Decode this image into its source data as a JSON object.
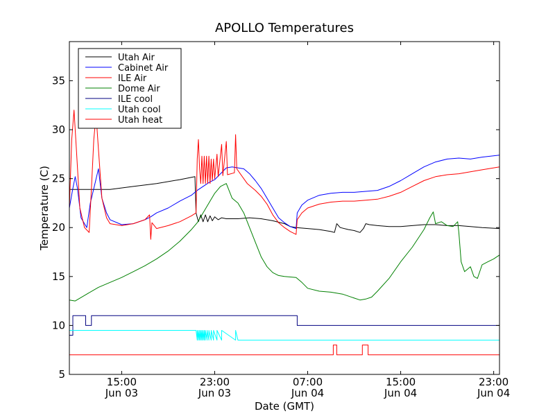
{
  "chart_data": {
    "type": "line",
    "title": "APOLLO Temperatures",
    "xlabel": "Date (GMT)",
    "ylabel": "Temperature (C)",
    "x_unit": "hours since Jun 03 00:00 GMT",
    "xlim": [
      10.5,
      47.5
    ],
    "ylim": [
      5,
      39
    ],
    "yticks": [
      5,
      10,
      15,
      20,
      25,
      30,
      35
    ],
    "ytick_labels": [
      "5",
      "10",
      "15",
      "20",
      "25",
      "30",
      "35"
    ],
    "xticks": [
      {
        "x": 15,
        "time": "15:00",
        "date": "Jun 03"
      },
      {
        "x": 23,
        "time": "23:00",
        "date": "Jun 03"
      },
      {
        "x": 31,
        "time": "07:00",
        "date": "Jun 04"
      },
      {
        "x": 39,
        "time": "15:00",
        "date": "Jun 04"
      },
      {
        "x": 47,
        "time": "23:00",
        "date": "Jun 04"
      }
    ],
    "legend_position": "top-left",
    "series": [
      {
        "name": "Utah Air",
        "color": "#000000",
        "points": [
          [
            10.5,
            23.9
          ],
          [
            12,
            23.9
          ],
          [
            14,
            23.9
          ],
          [
            16,
            24.2
          ],
          [
            18,
            24.5
          ],
          [
            20,
            24.9
          ],
          [
            21.3,
            25.2
          ],
          [
            21.4,
            21.5
          ],
          [
            21.6,
            20.6
          ],
          [
            21.8,
            21.3
          ],
          [
            22,
            20.6
          ],
          [
            22.2,
            21.3
          ],
          [
            22.4,
            20.6
          ],
          [
            22.6,
            21.2
          ],
          [
            22.8,
            20.7
          ],
          [
            23,
            21.1
          ],
          [
            23.3,
            20.8
          ],
          [
            23.6,
            21.0
          ],
          [
            24,
            20.9
          ],
          [
            25,
            20.9
          ],
          [
            26,
            21.0
          ],
          [
            27,
            20.9
          ],
          [
            28,
            20.7
          ],
          [
            29,
            20.4
          ],
          [
            29.5,
            20.1
          ],
          [
            30,
            20.0
          ],
          [
            31,
            19.9
          ],
          [
            32,
            19.8
          ],
          [
            33,
            19.6
          ],
          [
            33.3,
            19.5
          ],
          [
            33.5,
            20.4
          ],
          [
            33.8,
            20.0
          ],
          [
            34.5,
            19.8
          ],
          [
            35,
            19.7
          ],
          [
            35.5,
            19.5
          ],
          [
            35.8,
            19.9
          ],
          [
            36,
            20.4
          ],
          [
            36.3,
            20.3
          ],
          [
            37,
            20.2
          ],
          [
            38,
            20.1
          ],
          [
            39,
            20.1
          ],
          [
            40,
            20.2
          ],
          [
            41,
            20.3
          ],
          [
            42,
            20.3
          ],
          [
            43,
            20.2
          ],
          [
            44,
            20.2
          ],
          [
            45,
            20.1
          ],
          [
            46,
            20.0
          ],
          [
            47.5,
            19.9
          ]
        ]
      },
      {
        "name": "Cabinet Air",
        "color": "#0000ff",
        "points": [
          [
            10.5,
            22.0
          ],
          [
            10.8,
            24.0
          ],
          [
            11,
            25.2
          ],
          [
            11.2,
            24.0
          ],
          [
            11.5,
            21.0
          ],
          [
            12,
            20.0
          ],
          [
            12.3,
            22.5
          ],
          [
            12.7,
            24.5
          ],
          [
            13,
            26.0
          ],
          [
            13.3,
            23.0
          ],
          [
            13.7,
            21.5
          ],
          [
            14,
            20.8
          ],
          [
            15,
            20.3
          ],
          [
            16,
            20.4
          ],
          [
            17,
            20.8
          ],
          [
            17.5,
            21.1
          ],
          [
            18,
            21.5
          ],
          [
            19,
            22.0
          ],
          [
            20,
            22.7
          ],
          [
            21,
            23.3
          ],
          [
            21.5,
            23.8
          ],
          [
            22,
            24.2
          ],
          [
            22.5,
            24.6
          ],
          [
            23,
            24.9
          ],
          [
            23.5,
            25.5
          ],
          [
            24,
            26.1
          ],
          [
            24.5,
            26.2
          ],
          [
            25,
            26.1
          ],
          [
            25.5,
            26.0
          ],
          [
            26,
            25.5
          ],
          [
            26.5,
            24.8
          ],
          [
            27,
            24.0
          ],
          [
            27.5,
            23.0
          ],
          [
            28,
            22.0
          ],
          [
            28.5,
            21.0
          ],
          [
            29,
            20.5
          ],
          [
            29.5,
            20.1
          ],
          [
            30,
            19.9
          ],
          [
            30.1,
            21.5
          ],
          [
            30.5,
            22.3
          ],
          [
            31,
            22.8
          ],
          [
            32,
            23.3
          ],
          [
            33,
            23.5
          ],
          [
            34,
            23.6
          ],
          [
            35,
            23.6
          ],
          [
            36,
            23.7
          ],
          [
            37,
            23.8
          ],
          [
            38,
            24.2
          ],
          [
            39,
            24.8
          ],
          [
            40,
            25.5
          ],
          [
            41,
            26.2
          ],
          [
            42,
            26.7
          ],
          [
            43,
            27.0
          ],
          [
            44,
            27.1
          ],
          [
            45,
            27.0
          ],
          [
            46,
            27.2
          ],
          [
            47.5,
            27.4
          ]
        ]
      },
      {
        "name": "ILE Air",
        "color": "#ff0000",
        "points": [
          [
            10.5,
            22.0
          ],
          [
            10.7,
            29.0
          ],
          [
            10.9,
            32.0
          ],
          [
            11.1,
            28.0
          ],
          [
            11.4,
            22.0
          ],
          [
            11.8,
            20.0
          ],
          [
            12.2,
            19.5
          ],
          [
            12.4,
            24.0
          ],
          [
            12.6,
            29.0
          ],
          [
            12.8,
            31.5
          ],
          [
            13,
            28.0
          ],
          [
            13.3,
            23.0
          ],
          [
            13.7,
            21.0
          ],
          [
            14,
            20.4
          ],
          [
            15,
            20.2
          ],
          [
            16,
            20.4
          ],
          [
            17,
            20.8
          ],
          [
            17.4,
            21.3
          ],
          [
            17.5,
            18.8
          ],
          [
            17.6,
            20.5
          ],
          [
            18,
            19.9
          ],
          [
            19,
            20.2
          ],
          [
            20,
            20.6
          ],
          [
            21,
            21.2
          ],
          [
            21.4,
            21.5
          ],
          [
            21.5,
            27.0
          ],
          [
            21.6,
            29.0
          ],
          [
            21.7,
            26.0
          ],
          [
            21.8,
            24.5
          ],
          [
            21.9,
            27.3
          ],
          [
            22,
            24.5
          ],
          [
            22.1,
            27.3
          ],
          [
            22.2,
            24.5
          ],
          [
            22.3,
            27.3
          ],
          [
            22.4,
            24.5
          ],
          [
            22.5,
            27.3
          ],
          [
            22.6,
            24.5
          ],
          [
            22.7,
            27.0
          ],
          [
            22.8,
            24.8
          ],
          [
            22.9,
            27.0
          ],
          [
            23,
            25.0
          ],
          [
            23.2,
            27.5
          ],
          [
            23.3,
            25.2
          ],
          [
            23.6,
            28.5
          ],
          [
            23.7,
            25.3
          ],
          [
            24,
            28.8
          ],
          [
            24.1,
            25.4
          ],
          [
            24.7,
            25.6
          ],
          [
            24.8,
            29.5
          ],
          [
            24.9,
            26.0
          ],
          [
            25.2,
            25.5
          ],
          [
            25.8,
            24.5
          ],
          [
            26.5,
            23.8
          ],
          [
            27,
            23.2
          ],
          [
            27.5,
            22.4
          ],
          [
            28,
            21.3
          ],
          [
            28.5,
            20.5
          ],
          [
            29,
            20.0
          ],
          [
            29.5,
            19.6
          ],
          [
            30,
            19.3
          ],
          [
            30.1,
            20.8
          ],
          [
            30.5,
            21.5
          ],
          [
            31,
            22.0
          ],
          [
            32,
            22.4
          ],
          [
            33,
            22.6
          ],
          [
            34,
            22.7
          ],
          [
            35,
            22.7
          ],
          [
            36,
            22.8
          ],
          [
            37,
            22.9
          ],
          [
            38,
            23.2
          ],
          [
            39,
            23.6
          ],
          [
            40,
            24.2
          ],
          [
            41,
            24.8
          ],
          [
            42,
            25.2
          ],
          [
            43,
            25.4
          ],
          [
            44,
            25.5
          ],
          [
            45,
            25.7
          ],
          [
            46,
            25.9
          ],
          [
            47.5,
            26.2
          ]
        ]
      },
      {
        "name": "Dome Air",
        "color": "#008000",
        "points": [
          [
            10.5,
            12.6
          ],
          [
            11,
            12.5
          ],
          [
            12,
            13.2
          ],
          [
            13,
            13.9
          ],
          [
            14,
            14.4
          ],
          [
            15,
            14.9
          ],
          [
            16,
            15.5
          ],
          [
            17,
            16.1
          ],
          [
            18,
            16.8
          ],
          [
            19,
            17.6
          ],
          [
            20,
            18.6
          ],
          [
            21,
            19.8
          ],
          [
            21.5,
            20.5
          ],
          [
            22,
            21.5
          ],
          [
            22.5,
            22.5
          ],
          [
            23,
            23.5
          ],
          [
            23.5,
            24.2
          ],
          [
            24,
            24.5
          ],
          [
            24.5,
            23.0
          ],
          [
            25,
            22.5
          ],
          [
            25.5,
            21.5
          ],
          [
            26,
            20.0
          ],
          [
            26.5,
            18.5
          ],
          [
            27,
            17.0
          ],
          [
            27.5,
            16.0
          ],
          [
            28,
            15.4
          ],
          [
            28.5,
            15.1
          ],
          [
            29,
            15.0
          ],
          [
            30,
            14.9
          ],
          [
            30.5,
            14.4
          ],
          [
            31,
            13.8
          ],
          [
            32,
            13.5
          ],
          [
            33,
            13.4
          ],
          [
            34,
            13.2
          ],
          [
            35,
            12.8
          ],
          [
            35.5,
            12.6
          ],
          [
            36,
            12.7
          ],
          [
            36.5,
            12.9
          ],
          [
            37,
            13.5
          ],
          [
            38,
            14.8
          ],
          [
            39,
            16.5
          ],
          [
            40,
            18.0
          ],
          [
            41,
            19.8
          ],
          [
            41.5,
            21.0
          ],
          [
            41.8,
            21.6
          ],
          [
            42,
            20.4
          ],
          [
            42.5,
            20.6
          ],
          [
            43,
            20.2
          ],
          [
            43.5,
            20.1
          ],
          [
            43.9,
            20.6
          ],
          [
            44,
            19.5
          ],
          [
            44.2,
            16.5
          ],
          [
            44.5,
            15.5
          ],
          [
            45,
            16.0
          ],
          [
            45.3,
            15.0
          ],
          [
            45.6,
            14.8
          ],
          [
            46,
            16.2
          ],
          [
            46.5,
            16.5
          ],
          [
            47,
            16.8
          ],
          [
            47.5,
            17.2
          ]
        ]
      },
      {
        "name": "ILE cool",
        "color": "#000080",
        "points": [
          [
            10.5,
            9
          ],
          [
            10.8,
            9
          ],
          [
            10.8,
            11
          ],
          [
            11.9,
            11
          ],
          [
            11.9,
            10
          ],
          [
            12.4,
            10
          ],
          [
            12.4,
            11
          ],
          [
            30.1,
            11
          ],
          [
            30.1,
            10
          ],
          [
            47.5,
            10
          ]
        ]
      },
      {
        "name": "Utah cool",
        "color": "#00ffff",
        "points": [
          [
            10.5,
            9.5
          ],
          [
            21.4,
            9.5
          ],
          [
            21.5,
            8.5
          ],
          [
            21.5,
            9.5
          ],
          [
            21.6,
            8.5
          ],
          [
            21.6,
            9.5
          ],
          [
            21.7,
            8.5
          ],
          [
            21.7,
            9.5
          ],
          [
            21.8,
            8.5
          ],
          [
            21.8,
            9.5
          ],
          [
            21.9,
            8.5
          ],
          [
            21.9,
            9.5
          ],
          [
            22.0,
            8.5
          ],
          [
            22.0,
            9.5
          ],
          [
            22.1,
            8.5
          ],
          [
            22.1,
            9.5
          ],
          [
            22.2,
            8.5
          ],
          [
            22.2,
            9.5
          ],
          [
            22.35,
            8.5
          ],
          [
            22.35,
            9.5
          ],
          [
            22.5,
            8.5
          ],
          [
            22.5,
            9.5
          ],
          [
            22.7,
            8.5
          ],
          [
            22.7,
            9.5
          ],
          [
            22.9,
            8.5
          ],
          [
            22.9,
            9.5
          ],
          [
            23.2,
            8.5
          ],
          [
            23.2,
            9.5
          ],
          [
            23.6,
            8.5
          ],
          [
            23.6,
            9.5
          ],
          [
            24.8,
            8.5
          ],
          [
            24.8,
            9.5
          ],
          [
            25,
            8.5
          ],
          [
            47.5,
            8.5
          ]
        ]
      },
      {
        "name": "Utah heat",
        "color": "#ff0000",
        "points": [
          [
            10.5,
            7
          ],
          [
            33.2,
            7
          ],
          [
            33.2,
            8
          ],
          [
            33.5,
            8
          ],
          [
            33.5,
            7
          ],
          [
            35.7,
            7
          ],
          [
            35.7,
            8
          ],
          [
            36.2,
            8
          ],
          [
            36.2,
            7
          ],
          [
            47.5,
            7
          ]
        ]
      }
    ]
  }
}
